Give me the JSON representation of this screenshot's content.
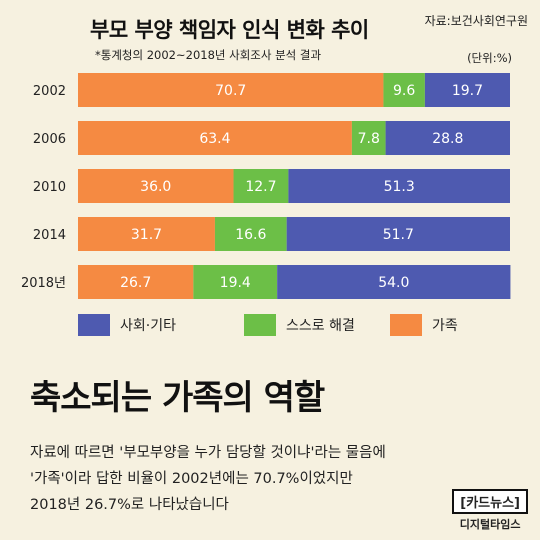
{
  "header": {
    "title": "부모 부양 책임자 인식 변화 추이",
    "source": "자료:보건사회연구원",
    "subtitle": "*통계청의 2002~2018년 사회조사 분석 결과",
    "unit": "(단위:%)"
  },
  "chart_data": {
    "type": "bar",
    "orientation": "horizontal",
    "stacked": true,
    "categories": [
      "2002",
      "2006",
      "2010",
      "2014",
      "2018년"
    ],
    "series": [
      {
        "name": "가족",
        "color": "#f58a42",
        "values": [
          70.7,
          63.4,
          36.0,
          31.7,
          26.7
        ]
      },
      {
        "name": "스스로 해결",
        "color": "#6cbf47",
        "values": [
          9.6,
          7.8,
          12.7,
          16.6,
          19.4
        ]
      },
      {
        "name": "사회·기타",
        "color": "#4e5ab0",
        "values": [
          19.7,
          28.8,
          51.3,
          51.7,
          54.0
        ]
      }
    ],
    "xlim": [
      0,
      100
    ],
    "legend": {
      "position": "bottom",
      "order": [
        "사회·기타",
        "스스로 해결",
        "가족"
      ]
    }
  },
  "headline": "축소되는 가족의 역할",
  "body_lines": [
    "자료에 따르면 '부모부양을 누가 담당할 것이냐'라는 물음에",
    "'가족'이라 답한 비율이 2002년에는 70.7%이었지만",
    "2018년 26.7%로 나타났습니다"
  ],
  "logo": {
    "top": "[카드뉴스]",
    "bottom": "디지털타임스"
  }
}
